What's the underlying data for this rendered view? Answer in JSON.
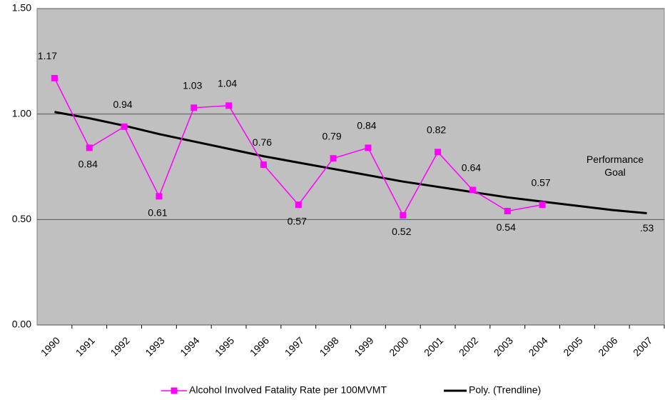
{
  "chart_data": {
    "type": "line",
    "categories": [
      "1990",
      "1991",
      "1992",
      "1993",
      "1994",
      "1995",
      "1996",
      "1997",
      "1998",
      "1999",
      "2000",
      "2001",
      "2002",
      "2003",
      "2004",
      "2005",
      "2006",
      "2007"
    ],
    "series": [
      {
        "name": "Alcohol Involved Fatality Rate per 100MVMT",
        "color": "#ff00ff",
        "values": [
          1.17,
          0.84,
          0.94,
          0.61,
          1.03,
          1.04,
          0.76,
          0.57,
          0.79,
          0.84,
          0.52,
          0.82,
          0.64,
          0.54,
          0.57,
          null,
          null,
          null
        ]
      },
      {
        "name": "Poly. (Trendline)",
        "color": "#000000",
        "values": [
          1.01,
          0.98,
          0.945,
          0.905,
          0.87,
          0.835,
          0.8,
          0.77,
          0.74,
          0.71,
          0.68,
          0.655,
          0.63,
          0.605,
          0.585,
          0.565,
          0.545,
          0.53
        ],
        "value_labels": [
          null,
          null,
          null,
          null,
          null,
          null,
          null,
          null,
          null,
          null,
          null,
          null,
          null,
          null,
          null,
          null,
          null,
          ".53"
        ]
      }
    ],
    "ylim": [
      0,
      1.5
    ],
    "yticks": [
      {
        "value": 0,
        "label": "0.00"
      },
      {
        "value": 0.5,
        "label": "0.50"
      },
      {
        "value": 1,
        "label": "1.00"
      },
      {
        "value": 1.5,
        "label": "1.50"
      }
    ],
    "grid": true,
    "annotation": "Performance Goal",
    "legend": "bottom"
  }
}
